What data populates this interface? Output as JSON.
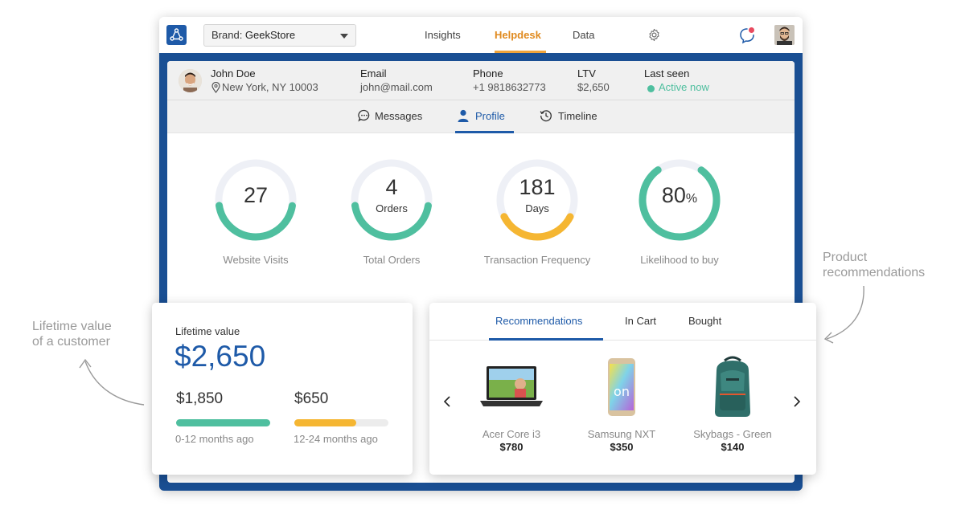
{
  "app": {
    "brand_prefix": "Brand: ",
    "brand_name": "GeekStore",
    "nav": [
      {
        "label": "Insights",
        "active": false
      },
      {
        "label": "Helpdesk",
        "active": true
      },
      {
        "label": "Data",
        "active": false
      }
    ]
  },
  "customer": {
    "name": "John Doe",
    "location": "New York, NY 10003",
    "email_label": "Email",
    "email": "john@mail.com",
    "phone_label": "Phone",
    "phone": "+1 9818632773",
    "ltv_label": "LTV",
    "ltv": "$2,650",
    "last_seen_label": "Last seen",
    "last_seen": "Active now"
  },
  "tabs": [
    {
      "label": "Messages",
      "icon": "chat-icon",
      "active": false
    },
    {
      "label": "Profile",
      "icon": "person-icon",
      "active": true
    },
    {
      "label": "Timeline",
      "icon": "history-icon",
      "active": false
    }
  ],
  "metrics": [
    {
      "value": "27",
      "unit": "",
      "sub": "",
      "label": "Website Visits",
      "fill": 0.45,
      "color": "#4fbf9f"
    },
    {
      "value": "4",
      "unit": "",
      "sub": "Orders",
      "label": "Total Orders",
      "fill": 0.45,
      "color": "#4fbf9f"
    },
    {
      "value": "181",
      "unit": "",
      "sub": "Days",
      "label": "Transaction Frequency",
      "fill": 0.35,
      "color": "#f5b632"
    },
    {
      "value": "80",
      "unit": "%",
      "sub": "",
      "label": "Likelihood to buy",
      "fill": 0.8,
      "color": "#4fbf9f"
    }
  ],
  "lifetime": {
    "title": "Lifetime value",
    "value": "$2,650",
    "segments": [
      {
        "amount": "$1,850",
        "period": "0-12 months ago",
        "fill": 1.0,
        "color": "#4fbf9f"
      },
      {
        "amount": "$650",
        "period": "12-24 months ago",
        "fill": 0.66,
        "color": "#f5b632"
      }
    ]
  },
  "recommendations": {
    "tabs": [
      {
        "label": "Recommendations",
        "active": true
      },
      {
        "label": "In Cart",
        "active": false
      },
      {
        "label": "Bought",
        "active": false
      }
    ],
    "products": [
      {
        "name": "Acer Core i3",
        "price": "$780",
        "icon": "laptop-icon"
      },
      {
        "name": "Samsung NXT",
        "price": "$350",
        "icon": "phone-icon"
      },
      {
        "name": "Skybags - Green",
        "price": "$140",
        "icon": "backpack-icon"
      }
    ]
  },
  "annotations": {
    "left_line1": "Lifetime value",
    "left_line2": "of a customer",
    "right_line1": "Product",
    "right_line2": "recommendations"
  },
  "colors": {
    "accent_blue": "#1e5aa8",
    "frame_blue": "#1a4f93",
    "green": "#4fbf9f",
    "amber": "#f5b632",
    "orange_nav": "#e08a1e"
  }
}
